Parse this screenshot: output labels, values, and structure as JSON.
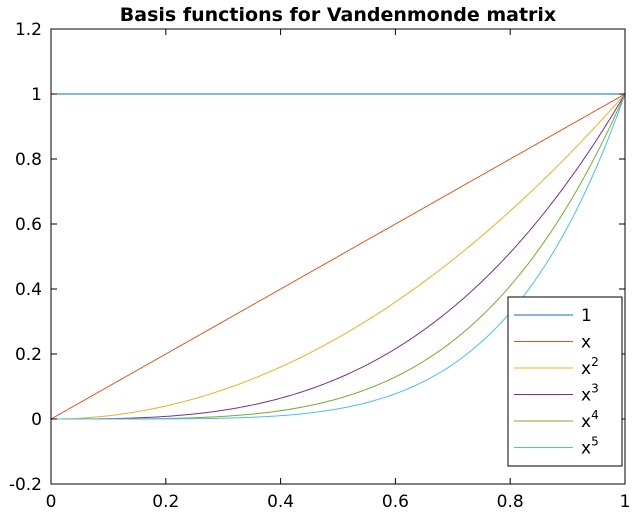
{
  "chart_data": {
    "type": "line",
    "title": "Basis functions for Vandenmonde matrix",
    "xlabel": "",
    "ylabel": "",
    "xlim": [
      0,
      1
    ],
    "ylim": [
      -0.2,
      1.2
    ],
    "x_ticks": [
      "0",
      "0.2",
      "0.4",
      "0.6",
      "0.8",
      "1"
    ],
    "x_tick_values": [
      0,
      0.2,
      0.4,
      0.6,
      0.8,
      1
    ],
    "y_ticks": [
      "-0.2",
      "0",
      "0.2",
      "0.4",
      "0.6",
      "0.8",
      "1",
      "1.2"
    ],
    "y_tick_values": [
      -0.2,
      0,
      0.2,
      0.4,
      0.6,
      0.8,
      1,
      1.2
    ],
    "grid": false,
    "legend_position": "lower-right",
    "series": [
      {
        "name": "1",
        "base": "1",
        "exponent": "",
        "power": 0,
        "color": "#0072BD"
      },
      {
        "name": "x",
        "base": "x",
        "exponent": "",
        "power": 1,
        "color": "#D95319"
      },
      {
        "name": "x^2",
        "base": "x",
        "exponent": "2",
        "power": 2,
        "color": "#EDB120"
      },
      {
        "name": "x^3",
        "base": "x",
        "exponent": "3",
        "power": 3,
        "color": "#7E2F8E"
      },
      {
        "name": "x^4",
        "base": "x",
        "exponent": "4",
        "power": 4,
        "color": "#77AC30"
      },
      {
        "name": "x^5",
        "base": "x",
        "exponent": "5",
        "power": 5,
        "color": "#4DBEEE"
      }
    ]
  }
}
